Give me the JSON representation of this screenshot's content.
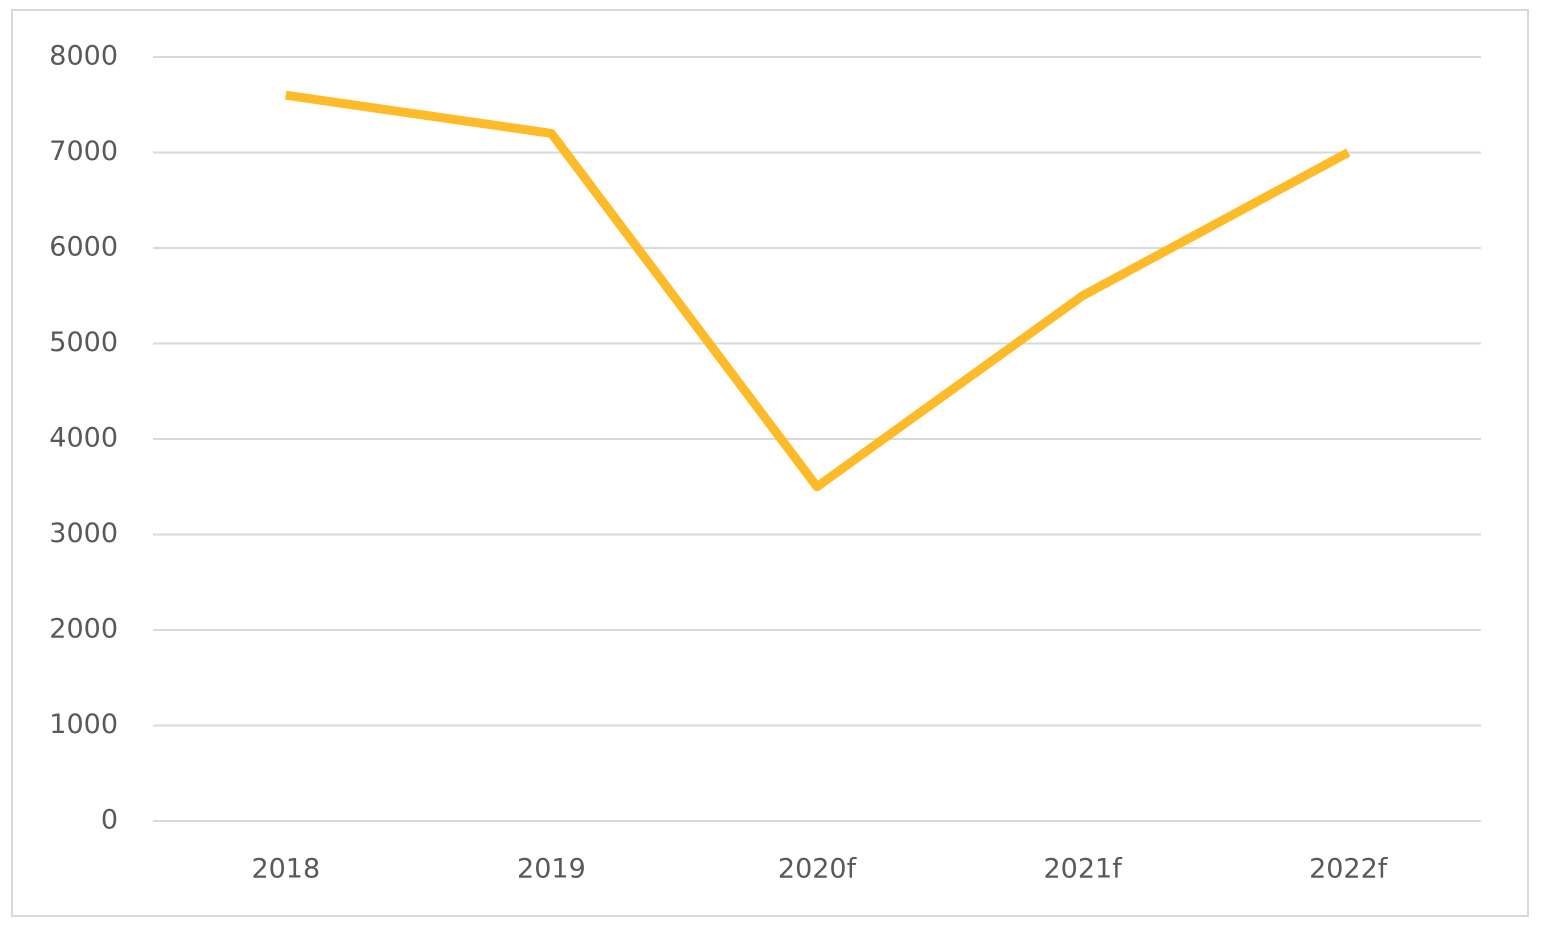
{
  "chart_data": {
    "type": "line",
    "categories": [
      "2018",
      "2019",
      "2020f",
      "2021f",
      "2022f"
    ],
    "series": [
      {
        "color": "#FDBB2A",
        "values": [
          7600,
          7200,
          3500,
          5500,
          7000
        ]
      }
    ],
    "ylim": [
      0,
      8000
    ],
    "yticks": [
      0,
      1000,
      2000,
      3000,
      4000,
      5000,
      6000,
      7000,
      8000
    ],
    "grid": true
  }
}
